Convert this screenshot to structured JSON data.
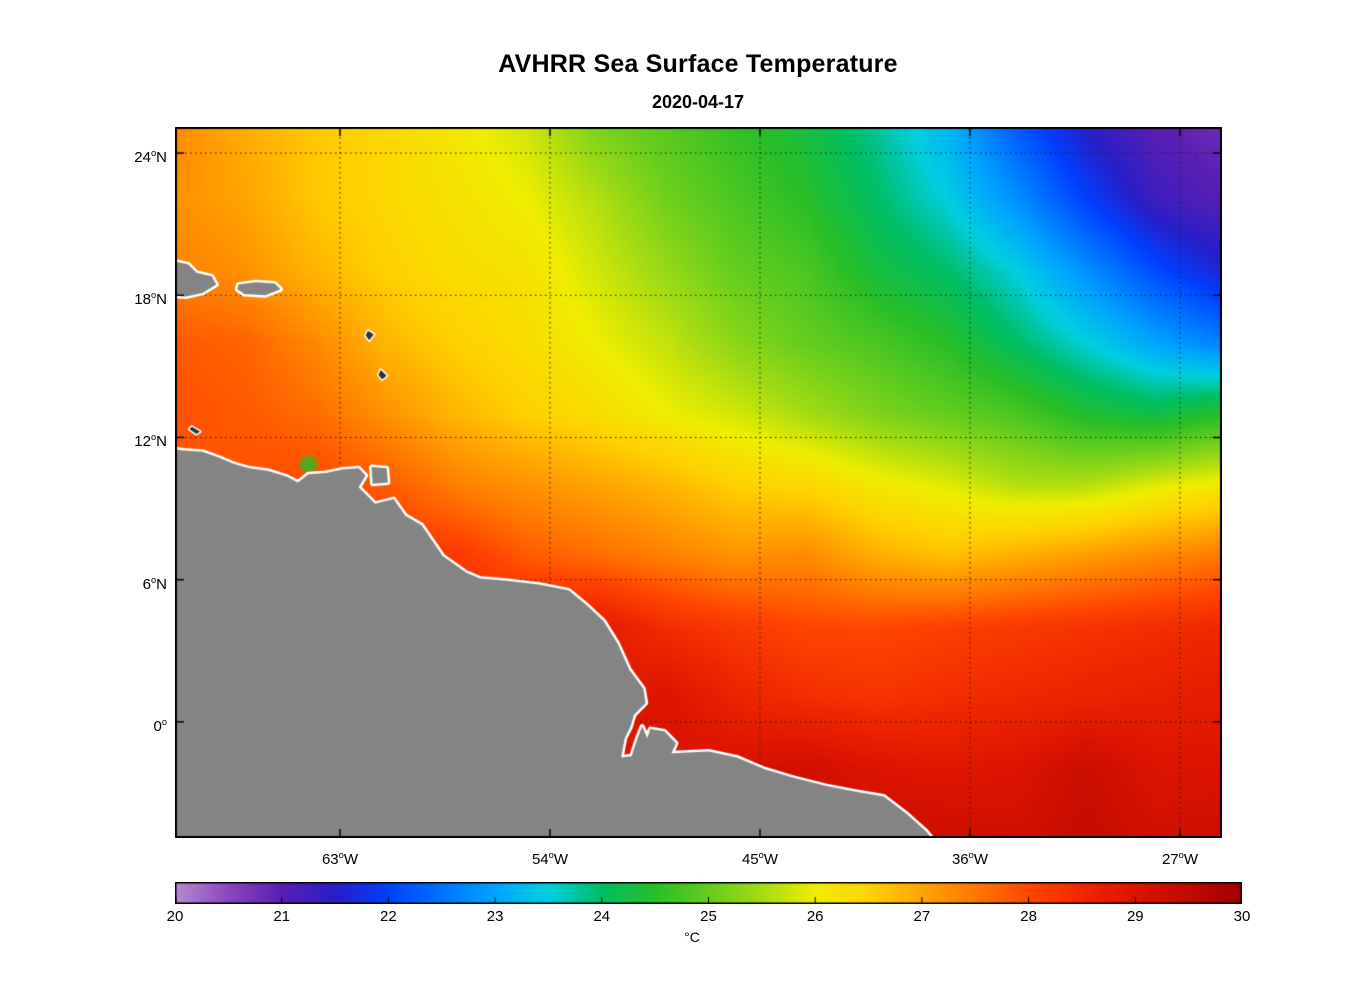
{
  "title": "AVHRR Sea Surface Temperature",
  "subtitle": "2020-04-17",
  "chart_data": {
    "type": "heatmap",
    "title": "AVHRR Sea Surface Temperature",
    "subtitle": "2020-04-17",
    "grid": "dotted",
    "lon_range": [
      -70.07,
      -25.2
    ],
    "lat_range": [
      -4.9,
      25.1
    ],
    "x_ticks": [
      {
        "lon": -63,
        "value": "63",
        "suffix": "W"
      },
      {
        "lon": -54,
        "value": "54",
        "suffix": "W"
      },
      {
        "lon": -45,
        "value": "45",
        "suffix": "W"
      },
      {
        "lon": -36,
        "value": "36",
        "suffix": "W"
      },
      {
        "lon": -27,
        "value": "27",
        "suffix": "W"
      }
    ],
    "y_ticks": [
      {
        "lat": 24,
        "value": "24",
        "suffix": "N"
      },
      {
        "lat": 18,
        "value": "18",
        "suffix": "N"
      },
      {
        "lat": 12,
        "value": "12",
        "suffix": "N"
      },
      {
        "lat": 6,
        "value": "6",
        "suffix": "N"
      },
      {
        "lat": 0,
        "value": "0",
        "suffix": ""
      }
    ],
    "colorbar": {
      "min": 20,
      "max": 30,
      "tick_values": [
        20,
        21,
        22,
        23,
        24,
        25,
        26,
        27,
        28,
        29,
        30
      ],
      "label": "°C"
    },
    "colormap": [
      [
        0.0,
        "#B48CD2"
      ],
      [
        0.05,
        "#8C46BE"
      ],
      [
        0.1,
        "#5A1EB4"
      ],
      [
        0.15,
        "#2A1EC8"
      ],
      [
        0.2,
        "#0040FF"
      ],
      [
        0.25,
        "#0073FF"
      ],
      [
        0.3,
        "#00A5FF"
      ],
      [
        0.35,
        "#00CFE1"
      ],
      [
        0.4,
        "#00BE64"
      ],
      [
        0.45,
        "#28BE28"
      ],
      [
        0.5,
        "#64CD1E"
      ],
      [
        0.55,
        "#A5DC14"
      ],
      [
        0.6,
        "#F0EE00"
      ],
      [
        0.65,
        "#FFD200"
      ],
      [
        0.7,
        "#FFA500"
      ],
      [
        0.75,
        "#FF7800"
      ],
      [
        0.8,
        "#FF4600"
      ],
      [
        0.85,
        "#F02800"
      ],
      [
        0.9,
        "#DC1400"
      ],
      [
        0.95,
        "#C00A00"
      ],
      [
        1.0,
        "#A00000"
      ]
    ],
    "sst_grid": {
      "lons": [
        -70,
        -67,
        -64,
        -61,
        -58,
        -55,
        -52,
        -49,
        -46,
        -43,
        -40,
        -37,
        -34,
        -31,
        -28,
        -25
      ],
      "lats": [
        25,
        22,
        19,
        16,
        13,
        10,
        7,
        4,
        1,
        -2,
        -5
      ],
      "values": [
        [
          27.3,
          26.9,
          26.6,
          26.4,
          26.1,
          25.8,
          25.2,
          24.9,
          24.6,
          24.3,
          23.8,
          23.2,
          22.3,
          21.5,
          21.0,
          20.8
        ],
        [
          27.2,
          27.0,
          26.6,
          26.4,
          26.2,
          26.0,
          25.6,
          25.1,
          24.8,
          24.5,
          24.0,
          23.5,
          22.8,
          22.0,
          21.3,
          21.0
        ],
        [
          27.4,
          27.2,
          26.8,
          26.5,
          26.3,
          26.2,
          25.8,
          25.4,
          25.0,
          24.8,
          24.3,
          24.0,
          23.5,
          22.8,
          22.1,
          21.6
        ],
        [
          27.8,
          27.7,
          27.3,
          26.8,
          26.5,
          26.3,
          26.0,
          25.7,
          25.3,
          25.0,
          24.8,
          24.5,
          24.0,
          23.5,
          23.0,
          22.6
        ],
        [
          27.9,
          27.8,
          27.6,
          27.2,
          26.8,
          26.5,
          26.3,
          26.0,
          25.8,
          25.5,
          25.2,
          25.0,
          24.8,
          24.4,
          24.2,
          24.5
        ],
        [
          27.8,
          27.9,
          28.0,
          27.8,
          27.4,
          27.2,
          27.0,
          26.8,
          26.5,
          26.4,
          26.1,
          25.9,
          25.6,
          25.6,
          25.9,
          26.1
        ],
        [
          28.0,
          28.0,
          28.1,
          28.2,
          28.2,
          27.8,
          27.6,
          27.4,
          27.2,
          27.3,
          26.9,
          26.7,
          26.9,
          27.1,
          27.3,
          27.5
        ],
        [
          28.3,
          28.3,
          28.3,
          28.4,
          28.5,
          28.6,
          28.8,
          28.4,
          28.2,
          28.0,
          28.0,
          28.1,
          28.2,
          28.3,
          28.4,
          28.5
        ],
        [
          28.5,
          28.5,
          28.5,
          28.5,
          28.6,
          28.7,
          28.8,
          29.0,
          28.6,
          28.4,
          28.3,
          28.4,
          28.5,
          28.6,
          28.7,
          28.8
        ],
        [
          28.8,
          28.8,
          28.8,
          28.8,
          28.8,
          28.9,
          29.0,
          29.0,
          29.1,
          29.2,
          29.0,
          28.9,
          29.0,
          29.3,
          29.0,
          29.0
        ],
        [
          29.0,
          29.0,
          29.0,
          29.0,
          29.0,
          29.0,
          29.1,
          29.1,
          29.2,
          29.2,
          29.3,
          29.3,
          29.2,
          29.4,
          29.2,
          29.3
        ]
      ]
    },
    "coastal_anomalies": [
      {
        "lon": -64.35,
        "lat": 10.85,
        "value": 24.5,
        "radius_px": 11
      },
      {
        "lon": -62.6,
        "lat": 10.5,
        "value": 28.9,
        "radius_px": 8
      }
    ],
    "land_color": "#848484",
    "coast_color": "#ffffff",
    "islet_color": "#333333",
    "land_polygons": {
      "mainland": [
        [
          -70.4,
          11.55
        ],
        [
          -69.7,
          11.45
        ],
        [
          -68.9,
          11.4
        ],
        [
          -68.2,
          11.15
        ],
        [
          -67.6,
          10.9
        ],
        [
          -66.9,
          10.7
        ],
        [
          -66.1,
          10.6
        ],
        [
          -65.3,
          10.35
        ],
        [
          -64.8,
          10.1
        ],
        [
          -64.35,
          10.45
        ],
        [
          -63.6,
          10.5
        ],
        [
          -62.9,
          10.65
        ],
        [
          -62.2,
          10.7
        ],
        [
          -61.9,
          10.4
        ],
        [
          -62.2,
          9.9
        ],
        [
          -61.5,
          9.2
        ],
        [
          -60.7,
          9.4
        ],
        [
          -60.2,
          8.7
        ],
        [
          -59.5,
          8.3
        ],
        [
          -58.6,
          7.0
        ],
        [
          -57.6,
          6.3
        ],
        [
          -57.0,
          6.05
        ],
        [
          -55.9,
          5.95
        ],
        [
          -54.5,
          5.8
        ],
        [
          -53.2,
          5.55
        ],
        [
          -52.4,
          4.9
        ],
        [
          -51.7,
          4.25
        ],
        [
          -51.1,
          3.3
        ],
        [
          -50.6,
          2.2
        ],
        [
          -50.0,
          1.4
        ],
        [
          -49.9,
          0.8
        ],
        [
          -50.4,
          0.3
        ],
        [
          -50.55,
          -0.2
        ],
        [
          -50.8,
          -0.7
        ],
        [
          -50.95,
          -1.5
        ],
        [
          -50.5,
          -1.45
        ],
        [
          -50.25,
          -0.7
        ],
        [
          -50.05,
          -0.2
        ],
        [
          -49.8,
          -0.75
        ],
        [
          -49.1,
          -1.35
        ],
        [
          -48.3,
          -1.3
        ],
        [
          -47.2,
          -1.25
        ],
        [
          -46.0,
          -1.5
        ],
        [
          -44.8,
          -2.0
        ],
        [
          -43.6,
          -2.35
        ],
        [
          -42.2,
          -2.7
        ],
        [
          -40.9,
          -2.95
        ],
        [
          -39.7,
          -3.15
        ],
        [
          -38.7,
          -3.9
        ],
        [
          -37.9,
          -4.6
        ],
        [
          -37.3,
          -5.3
        ],
        [
          -37.2,
          -6.0
        ],
        [
          -71.0,
          -6.0
        ]
      ],
      "marajo_island": [
        [
          -49.7,
          -0.3
        ],
        [
          -49.1,
          -0.4
        ],
        [
          -48.6,
          -0.9
        ],
        [
          -48.85,
          -1.45
        ],
        [
          -49.5,
          -1.5
        ],
        [
          -49.9,
          -0.9
        ]
      ],
      "trinidad": [
        [
          -61.65,
          10.75
        ],
        [
          -61.0,
          10.7
        ],
        [
          -60.95,
          10.1
        ],
        [
          -61.6,
          10.05
        ]
      ],
      "hispaniola_east": [
        [
          -70.4,
          19.5
        ],
        [
          -69.5,
          19.3
        ],
        [
          -69.15,
          18.95
        ],
        [
          -68.5,
          18.8
        ],
        [
          -68.3,
          18.45
        ],
        [
          -68.9,
          18.1
        ],
        [
          -69.6,
          17.95
        ],
        [
          -70.4,
          18.0
        ]
      ],
      "puerto_rico": [
        [
          -67.35,
          18.45
        ],
        [
          -66.6,
          18.55
        ],
        [
          -65.8,
          18.5
        ],
        [
          -65.55,
          18.25
        ],
        [
          -66.2,
          18.0
        ],
        [
          -67.1,
          18.05
        ],
        [
          -67.4,
          18.25
        ]
      ]
    },
    "islets": [
      [
        [
          -61.8,
          16.5
        ],
        [
          -61.55,
          16.35
        ],
        [
          -61.75,
          16.1
        ],
        [
          -61.9,
          16.3
        ]
      ],
      [
        [
          -61.25,
          14.85
        ],
        [
          -61.0,
          14.6
        ],
        [
          -61.2,
          14.45
        ],
        [
          -61.35,
          14.65
        ]
      ],
      [
        [
          -69.35,
          12.45
        ],
        [
          -69.0,
          12.25
        ],
        [
          -69.15,
          12.15
        ],
        [
          -69.45,
          12.35
        ]
      ]
    ]
  }
}
